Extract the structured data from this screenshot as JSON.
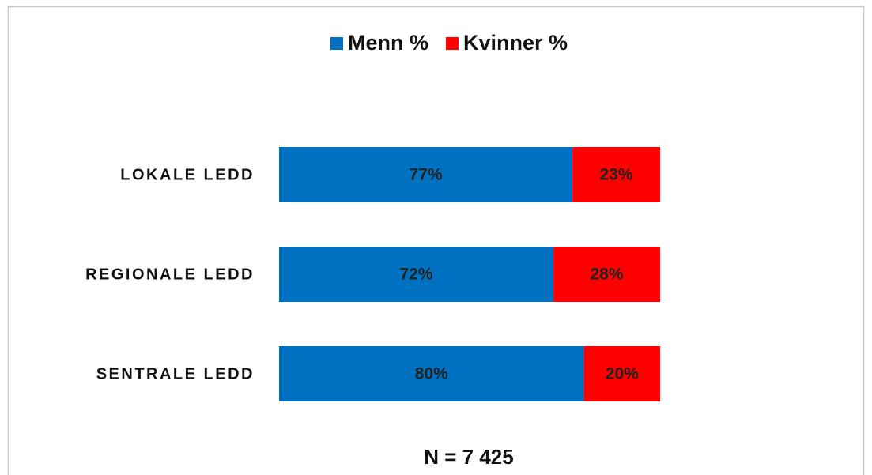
{
  "chart_data": {
    "type": "stacked_bar_horizontal",
    "categories": [
      "LOKALE LEDD",
      "REGIONALE LEDD",
      "SENTRALE LEDD"
    ],
    "series": [
      {
        "name": "Menn %",
        "color": "#0070c0",
        "values": [
          77,
          72,
          80
        ],
        "value_labels": [
          "77%",
          "72%",
          "80%"
        ]
      },
      {
        "name": "Kvinner %",
        "color": "#ff0000",
        "values": [
          23,
          28,
          20
        ],
        "value_labels": [
          "23%",
          "28%",
          "20%"
        ]
      }
    ],
    "xlim": [
      0,
      100
    ],
    "legend": "top",
    "annotation": "N = 7 425"
  }
}
